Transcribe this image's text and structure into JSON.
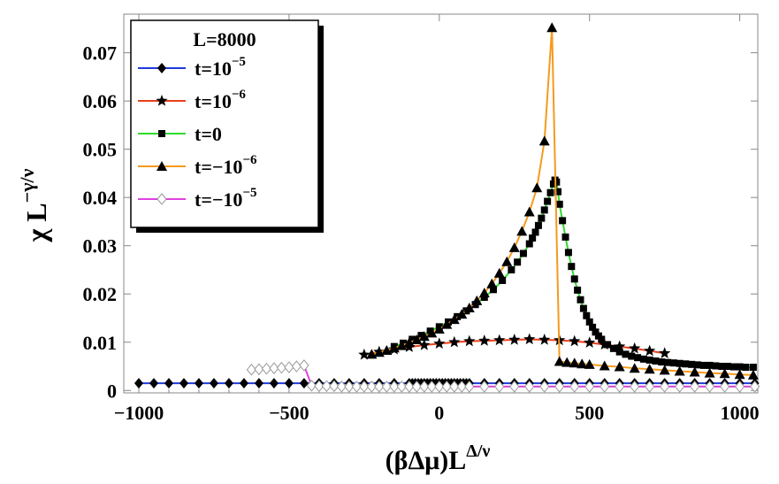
{
  "chart_data": {
    "type": "line",
    "legend_title": "L=8000",
    "legend_position": "top-left",
    "xlabel": {
      "main": "(βΔμ)L",
      "sup": "Δ/ν"
    },
    "ylabel": {
      "main": "χ L",
      "sup": "−γ/ν"
    },
    "xlim": [
      -1050,
      1060
    ],
    "ylim": [
      -0.0005,
      0.078
    ],
    "x_ticks": [
      {
        "value": -1000,
        "label": "−1000"
      },
      {
        "value": -500,
        "label": "−500"
      },
      {
        "value": 0,
        "label": "0"
      },
      {
        "value": 500,
        "label": "500"
      },
      {
        "value": 1000,
        "label": "1000"
      }
    ],
    "y_ticks": [
      {
        "value": 0,
        "label": "0"
      },
      {
        "value": 0.01,
        "label": "0.01"
      },
      {
        "value": 0.02,
        "label": "0.02"
      },
      {
        "value": 0.03,
        "label": "0.03"
      },
      {
        "value": 0.04,
        "label": "0.04"
      },
      {
        "value": 0.05,
        "label": "0.05"
      },
      {
        "value": 0.06,
        "label": "0.06"
      },
      {
        "value": 0.07,
        "label": "0.07"
      }
    ],
    "grid": false,
    "series": [
      {
        "legend": {
          "base": "t=10",
          "sup": "−5"
        },
        "color": "#1f3bdc",
        "marker": "diamond",
        "points": [
          [
            -1000,
            0.0015
          ],
          [
            -950,
            0.0015
          ],
          [
            -900,
            0.0015
          ],
          [
            -850,
            0.0015
          ],
          [
            -800,
            0.0015
          ],
          [
            -750,
            0.0015
          ],
          [
            -700,
            0.0015
          ],
          [
            -650,
            0.0015
          ],
          [
            -600,
            0.0015
          ],
          [
            -550,
            0.0015
          ],
          [
            -500,
            0.0015
          ],
          [
            -450,
            0.0015
          ],
          [
            -400,
            0.0015
          ],
          [
            -350,
            0.0015
          ],
          [
            -300,
            0.0015
          ],
          [
            -250,
            0.0015
          ],
          [
            -200,
            0.0015
          ],
          [
            -150,
            0.0015
          ],
          [
            -100,
            0.0015
          ],
          [
            -90,
            0.0015
          ],
          [
            -80,
            0.0015
          ],
          [
            -70,
            0.0015
          ],
          [
            -60,
            0.0015
          ],
          [
            -50,
            0.0015
          ],
          [
            -40,
            0.0015
          ],
          [
            -30,
            0.0015
          ],
          [
            -20,
            0.0015
          ],
          [
            -10,
            0.0015
          ],
          [
            0,
            0.0015
          ],
          [
            10,
            0.0015
          ],
          [
            20,
            0.0015
          ],
          [
            30,
            0.0015
          ],
          [
            40,
            0.0015
          ],
          [
            50,
            0.0015
          ],
          [
            60,
            0.0015
          ],
          [
            70,
            0.0015
          ],
          [
            80,
            0.0015
          ],
          [
            90,
            0.0015
          ],
          [
            100,
            0.0015
          ],
          [
            150,
            0.0015
          ],
          [
            200,
            0.0015
          ],
          [
            250,
            0.0015
          ],
          [
            300,
            0.0015
          ],
          [
            350,
            0.0015
          ],
          [
            400,
            0.0015
          ],
          [
            450,
            0.0015
          ],
          [
            500,
            0.0015
          ],
          [
            550,
            0.0015
          ],
          [
            600,
            0.0015
          ],
          [
            650,
            0.0015
          ],
          [
            700,
            0.0015
          ],
          [
            750,
            0.0015
          ],
          [
            800,
            0.0015
          ],
          [
            850,
            0.0015
          ],
          [
            900,
            0.0015
          ],
          [
            950,
            0.0015
          ],
          [
            1000,
            0.0015
          ],
          [
            1050,
            0.0015
          ]
        ]
      },
      {
        "legend": {
          "base": "t=10",
          "sup": "−6"
        },
        "color": "#e8401c",
        "marker": "star",
        "points": [
          [
            -250,
            0.0074
          ],
          [
            -200,
            0.008
          ],
          [
            -150,
            0.0085
          ],
          [
            -100,
            0.009
          ],
          [
            -50,
            0.0094
          ],
          [
            0,
            0.0097
          ],
          [
            50,
            0.01
          ],
          [
            100,
            0.0102
          ],
          [
            150,
            0.0103
          ],
          [
            200,
            0.0104
          ],
          [
            250,
            0.0105
          ],
          [
            300,
            0.0106
          ],
          [
            350,
            0.0105
          ],
          [
            400,
            0.0104
          ],
          [
            450,
            0.0102
          ],
          [
            500,
            0.0099
          ],
          [
            550,
            0.0095
          ],
          [
            600,
            0.0091
          ],
          [
            650,
            0.0087
          ],
          [
            700,
            0.0082
          ],
          [
            750,
            0.0077
          ]
        ]
      },
      {
        "legend": {
          "base": "t=0",
          "sup": ""
        },
        "color": "#2edb2e",
        "marker": "square",
        "points": [
          [
            -150,
            0.0091
          ],
          [
            -120,
            0.0098
          ],
          [
            -90,
            0.0106
          ],
          [
            -60,
            0.0114
          ],
          [
            -30,
            0.0123
          ],
          [
            0,
            0.0132
          ],
          [
            30,
            0.0142
          ],
          [
            60,
            0.0153
          ],
          [
            90,
            0.0165
          ],
          [
            120,
            0.0178
          ],
          [
            150,
            0.0193
          ],
          [
            180,
            0.0209
          ],
          [
            210,
            0.0228
          ],
          [
            240,
            0.025
          ],
          [
            260,
            0.0266
          ],
          [
            280,
            0.0284
          ],
          [
            300,
            0.0304
          ],
          [
            310,
            0.0316
          ],
          [
            320,
            0.0328
          ],
          [
            330,
            0.0342
          ],
          [
            340,
            0.0357
          ],
          [
            350,
            0.0374
          ],
          [
            360,
            0.0392
          ],
          [
            370,
            0.041
          ],
          [
            380,
            0.0428
          ],
          [
            385,
            0.0436
          ],
          [
            390,
            0.0432
          ],
          [
            395,
            0.0412
          ],
          [
            400,
            0.0386
          ],
          [
            410,
            0.0352
          ],
          [
            420,
            0.0318
          ],
          [
            430,
            0.0286
          ],
          [
            440,
            0.0257
          ],
          [
            450,
            0.0231
          ],
          [
            460,
            0.0208
          ],
          [
            470,
            0.0188
          ],
          [
            480,
            0.017
          ],
          [
            490,
            0.0155
          ],
          [
            500,
            0.0142
          ],
          [
            510,
            0.0131
          ],
          [
            520,
            0.0121
          ],
          [
            530,
            0.0113
          ],
          [
            540,
            0.0106
          ],
          [
            560,
            0.0095
          ],
          [
            580,
            0.0087
          ],
          [
            600,
            0.008
          ],
          [
            620,
            0.0075
          ],
          [
            640,
            0.0071
          ],
          [
            660,
            0.0068
          ],
          [
            680,
            0.0065
          ],
          [
            700,
            0.0063
          ],
          [
            720,
            0.0061
          ],
          [
            740,
            0.0059
          ],
          [
            760,
            0.0058
          ],
          [
            780,
            0.0057
          ],
          [
            800,
            0.0056
          ],
          [
            820,
            0.0055
          ],
          [
            840,
            0.0054
          ],
          [
            860,
            0.0053
          ],
          [
            880,
            0.0052
          ],
          [
            900,
            0.0052
          ],
          [
            920,
            0.0051
          ],
          [
            940,
            0.005
          ],
          [
            960,
            0.005
          ],
          [
            980,
            0.0049
          ],
          [
            1000,
            0.0049
          ],
          [
            1020,
            0.0048
          ],
          [
            1045,
            0.0048
          ]
        ]
      },
      {
        "legend": {
          "base": "t=−10",
          "sup": "−6"
        },
        "color": "#f59a1e",
        "marker": "triangle",
        "points": [
          [
            -225,
            0.0075
          ],
          [
            -200,
            0.0079
          ],
          [
            -175,
            0.0083
          ],
          [
            -150,
            0.0088
          ],
          [
            -125,
            0.0093
          ],
          [
            -100,
            0.0099
          ],
          [
            -75,
            0.0105
          ],
          [
            -50,
            0.0112
          ],
          [
            -25,
            0.0119
          ],
          [
            0,
            0.0127
          ],
          [
            25,
            0.0137
          ],
          [
            50,
            0.0147
          ],
          [
            75,
            0.0158
          ],
          [
            100,
            0.0171
          ],
          [
            125,
            0.0186
          ],
          [
            150,
            0.0202
          ],
          [
            175,
            0.0221
          ],
          [
            200,
            0.0243
          ],
          [
            225,
            0.0267
          ],
          [
            250,
            0.0296
          ],
          [
            275,
            0.033
          ],
          [
            300,
            0.037
          ],
          [
            325,
            0.042
          ],
          [
            350,
            0.0517
          ],
          [
            375,
            0.0752
          ],
          [
            400,
            0.006
          ],
          [
            425,
            0.0058
          ],
          [
            450,
            0.0057
          ],
          [
            475,
            0.0055
          ],
          [
            500,
            0.0054
          ],
          [
            550,
            0.0051
          ],
          [
            600,
            0.0049
          ],
          [
            650,
            0.0046
          ],
          [
            700,
            0.0044
          ],
          [
            750,
            0.0042
          ],
          [
            800,
            0.004
          ],
          [
            850,
            0.0038
          ],
          [
            900,
            0.0036
          ],
          [
            950,
            0.0035
          ],
          [
            1000,
            0.0033
          ],
          [
            1045,
            0.0032
          ]
        ]
      },
      {
        "legend": {
          "base": "t=−10",
          "sup": "−5"
        },
        "color": "#e040e0",
        "marker": "open-diamond",
        "points": [
          [
            -625,
            0.0043
          ],
          [
            -600,
            0.0044
          ],
          [
            -575,
            0.0045
          ],
          [
            -550,
            0.0046
          ],
          [
            -525,
            0.0047
          ],
          [
            -500,
            0.0048
          ],
          [
            -475,
            0.005
          ],
          [
            -450,
            0.0052
          ],
          [
            -425,
            0.001
          ],
          [
            -400,
            0.0009
          ],
          [
            -375,
            0.0009
          ],
          [
            -350,
            0.0009
          ],
          [
            -325,
            0.0008
          ],
          [
            -300,
            0.0008
          ],
          [
            -275,
            0.0008
          ],
          [
            -250,
            0.0008
          ],
          [
            -225,
            0.0008
          ],
          [
            -200,
            0.0008
          ],
          [
            -175,
            0.0008
          ],
          [
            -150,
            0.0008
          ],
          [
            -125,
            0.0008
          ],
          [
            -100,
            0.0008
          ],
          [
            -75,
            0.0008
          ],
          [
            -50,
            0.0008
          ],
          [
            -25,
            0.0008
          ],
          [
            0,
            0.0008
          ],
          [
            25,
            0.0008
          ],
          [
            50,
            0.0008
          ],
          [
            75,
            0.0008
          ],
          [
            100,
            0.0008
          ],
          [
            150,
            0.0008
          ],
          [
            200,
            0.0008
          ],
          [
            250,
            0.0008
          ],
          [
            300,
            0.0008
          ],
          [
            350,
            0.0008
          ],
          [
            400,
            0.0008
          ],
          [
            450,
            0.0008
          ],
          [
            500,
            0.0008
          ],
          [
            550,
            0.0008
          ],
          [
            600,
            0.0008
          ],
          [
            650,
            0.0008
          ],
          [
            700,
            0.0008
          ],
          [
            750,
            0.0008
          ],
          [
            800,
            0.0008
          ],
          [
            850,
            0.0008
          ],
          [
            900,
            0.0008
          ],
          [
            950,
            0.0008
          ],
          [
            1000,
            0.0008
          ],
          [
            1050,
            0.0008
          ]
        ]
      }
    ]
  }
}
